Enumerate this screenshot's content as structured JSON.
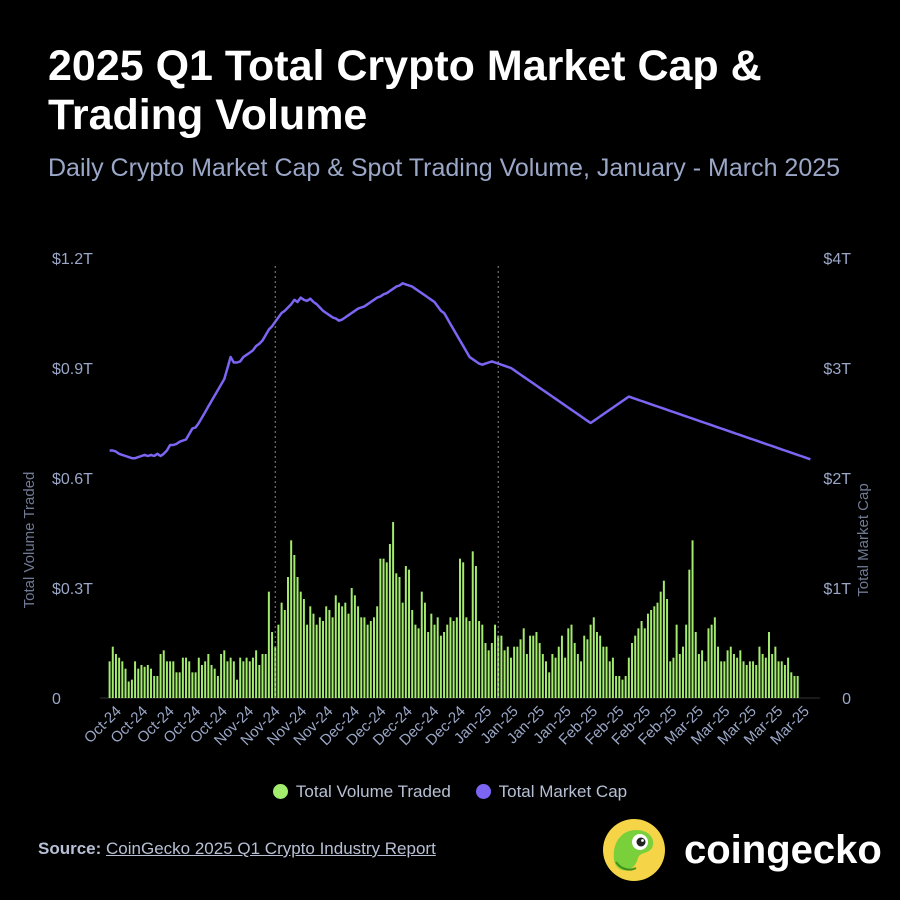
{
  "title": "2025 Q1 Total Crypto Market Cap & Trading Volume",
  "subtitle": "Daily Crypto Market Cap & Spot Trading Volume, January - March 2025",
  "legend": {
    "volume": "Total Volume Traded",
    "mcap": "Total Market Cap"
  },
  "footer": {
    "label": "Source:",
    "link": "CoinGecko 2025 Q1 Crypto Industry Report"
  },
  "brand": {
    "name": "coingecko",
    "icon": "gecko-logo-icon"
  },
  "colors": {
    "volume": "#a3ec6e",
    "mcap": "#7c65f2",
    "axis_text": "#9aa7c7",
    "background": "#000000"
  },
  "chart_data": {
    "type": "bar+line",
    "x_tick_labels": [
      "Oct-24",
      "Oct-24",
      "Oct-24",
      "Oct-24",
      "Oct-24",
      "Nov-24",
      "Nov-24",
      "Nov-24",
      "Nov-24",
      "Dec-24",
      "Dec-24",
      "Dec-24",
      "Dec-24",
      "Dec-24",
      "Jan-25",
      "Jan-25",
      "Jan-25",
      "Jan-25",
      "Feb-25",
      "Feb-25",
      "Feb-25",
      "Feb-25",
      "Mar-25",
      "Mar-25",
      "Mar-25",
      "Mar-25",
      "Mar-25"
    ],
    "y_left": {
      "label": "Total Volume Traded",
      "ticks": [
        "0",
        "$0.3T",
        "$0.6T",
        "$0.9T",
        "$1.2T"
      ],
      "range": [
        0,
        1.2
      ],
      "unit": "T USD"
    },
    "y_right": {
      "label": "Total Market Cap",
      "ticks": [
        "0",
        "$1T",
        "$2T",
        "$3T",
        "$4T"
      ],
      "range": [
        0,
        4
      ],
      "unit": "T USD"
    },
    "vertical_markers_day_index": [
      52,
      122
    ],
    "series": [
      {
        "name": "Total Volume Traded",
        "type": "bar",
        "axis": "left",
        "values": [
          0.1,
          0.14,
          0.12,
          0.11,
          0.1,
          0.08,
          0.045,
          0.05,
          0.1,
          0.08,
          0.09,
          0.085,
          0.09,
          0.08,
          0.06,
          0.06,
          0.12,
          0.13,
          0.1,
          0.1,
          0.1,
          0.07,
          0.07,
          0.11,
          0.11,
          0.1,
          0.07,
          0.07,
          0.11,
          0.09,
          0.1,
          0.12,
          0.09,
          0.08,
          0.06,
          0.12,
          0.13,
          0.1,
          0.11,
          0.1,
          0.05,
          0.11,
          0.1,
          0.11,
          0.1,
          0.11,
          0.13,
          0.09,
          0.12,
          0.12,
          0.29,
          0.18,
          0.14,
          0.2,
          0.26,
          0.24,
          0.33,
          0.43,
          0.39,
          0.33,
          0.29,
          0.27,
          0.2,
          0.25,
          0.23,
          0.2,
          0.22,
          0.21,
          0.25,
          0.24,
          0.22,
          0.28,
          0.26,
          0.25,
          0.26,
          0.23,
          0.3,
          0.28,
          0.25,
          0.22,
          0.22,
          0.2,
          0.21,
          0.22,
          0.25,
          0.38,
          0.38,
          0.37,
          0.42,
          0.48,
          0.34,
          0.33,
          0.26,
          0.36,
          0.35,
          0.24,
          0.2,
          0.19,
          0.29,
          0.26,
          0.18,
          0.23,
          0.2,
          0.22,
          0.17,
          0.18,
          0.2,
          0.22,
          0.21,
          0.22,
          0.38,
          0.37,
          0.22,
          0.21,
          0.4,
          0.36,
          0.21,
          0.2,
          0.15,
          0.13,
          0.15,
          0.2,
          0.17,
          0.17,
          0.13,
          0.14,
          0.11,
          0.14,
          0.14,
          0.16,
          0.19,
          0.12,
          0.17,
          0.17,
          0.18,
          0.15,
          0.12,
          0.1,
          0.07,
          0.12,
          0.11,
          0.14,
          0.17,
          0.11,
          0.19,
          0.2,
          0.15,
          0.12,
          0.1,
          0.17,
          0.16,
          0.2,
          0.22,
          0.18,
          0.17,
          0.14,
          0.14,
          0.1,
          0.11,
          0.06,
          0.06,
          0.05,
          0.06,
          0.11,
          0.15,
          0.17,
          0.19,
          0.21,
          0.19,
          0.23,
          0.24,
          0.25,
          0.26,
          0.29,
          0.32,
          0.27,
          0.1,
          0.11,
          0.2,
          0.12,
          0.14,
          0.2,
          0.35,
          0.43,
          0.18,
          0.12,
          0.13,
          0.1,
          0.19,
          0.2,
          0.22,
          0.14,
          0.1,
          0.1,
          0.13,
          0.14,
          0.12,
          0.11,
          0.13,
          0.1,
          0.09,
          0.1,
          0.1,
          0.09,
          0.14,
          0.12,
          0.11,
          0.18,
          0.12,
          0.14,
          0.1,
          0.1,
          0.09,
          0.11,
          0.07,
          0.06,
          0.06
        ]
      },
      {
        "name": "Total Market Cap",
        "type": "line",
        "axis": "right",
        "values": [
          2.25,
          2.25,
          2.24,
          2.22,
          2.21,
          2.2,
          2.19,
          2.18,
          2.18,
          2.19,
          2.2,
          2.21,
          2.2,
          2.21,
          2.2,
          2.22,
          2.2,
          2.22,
          2.25,
          2.3,
          2.3,
          2.31,
          2.33,
          2.34,
          2.35,
          2.4,
          2.45,
          2.46,
          2.5,
          2.55,
          2.6,
          2.65,
          2.7,
          2.75,
          2.8,
          2.85,
          2.9,
          3.0,
          3.1,
          3.05,
          3.05,
          3.06,
          3.1,
          3.12,
          3.14,
          3.16,
          3.2,
          3.22,
          3.25,
          3.3,
          3.35,
          3.38,
          3.42,
          3.46,
          3.5,
          3.52,
          3.55,
          3.58,
          3.62,
          3.6,
          3.64,
          3.62,
          3.61,
          3.63,
          3.6,
          3.58,
          3.55,
          3.52,
          3.5,
          3.48,
          3.46,
          3.45,
          3.43,
          3.44,
          3.46,
          3.48,
          3.5,
          3.52,
          3.54,
          3.55,
          3.56,
          3.58,
          3.6,
          3.62,
          3.64,
          3.65,
          3.67,
          3.68,
          3.7,
          3.72,
          3.74,
          3.75,
          3.77,
          3.76,
          3.75,
          3.74,
          3.72,
          3.7,
          3.68,
          3.66,
          3.64,
          3.62,
          3.6,
          3.56,
          3.52,
          3.5,
          3.45,
          3.4,
          3.35,
          3.3,
          3.25,
          3.2,
          3.15,
          3.1,
          3.08,
          3.06,
          3.04,
          3.03,
          3.04,
          3.05,
          3.06,
          3.05,
          3.04,
          3.03,
          3.02,
          3.01,
          3.0,
          2.98,
          2.96,
          2.94,
          2.92,
          2.9,
          2.88,
          2.86,
          2.84,
          2.82,
          2.8,
          2.78,
          2.76,
          2.74,
          2.72,
          2.7,
          2.68,
          2.66,
          2.64,
          2.62,
          2.6,
          2.58,
          2.56,
          2.54,
          2.52,
          2.5,
          2.52,
          2.54,
          2.56,
          2.58,
          2.6,
          2.62,
          2.64,
          2.66,
          2.68,
          2.7,
          2.72,
          2.74,
          2.73,
          2.72,
          2.71,
          2.7,
          2.69,
          2.68,
          2.67,
          2.66,
          2.65,
          2.64,
          2.63,
          2.62,
          2.61,
          2.6,
          2.59,
          2.58,
          2.57,
          2.56,
          2.55,
          2.54,
          2.53,
          2.52,
          2.51,
          2.5,
          2.49,
          2.48,
          2.47,
          2.46,
          2.45,
          2.44,
          2.43,
          2.42,
          2.41,
          2.4,
          2.39,
          2.38,
          2.37,
          2.36,
          2.35,
          2.34,
          2.33,
          2.32,
          2.31,
          2.3,
          2.29,
          2.28,
          2.27,
          2.26,
          2.25,
          2.24,
          2.23,
          2.22,
          2.21,
          2.2,
          2.19,
          2.18,
          2.17
        ]
      }
    ]
  }
}
